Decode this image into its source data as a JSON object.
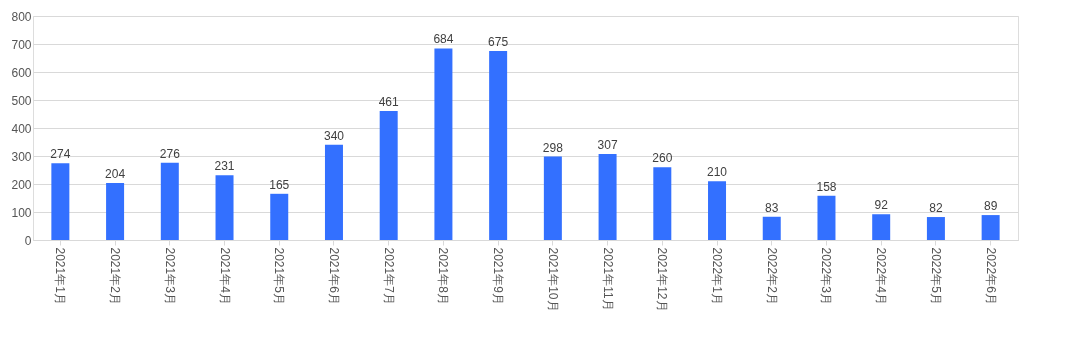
{
  "chart_data": {
    "type": "bar",
    "categories": [
      "2021年1月",
      "2021年2月",
      "2021年3月",
      "2021年4月",
      "2021年5月",
      "2021年6月",
      "2021年7月",
      "2021年8月",
      "2021年9月",
      "2021年10月",
      "2021年11月",
      "2021年12月",
      "2022年1月",
      "2022年2月",
      "2022年3月",
      "2022年4月",
      "2022年5月",
      "2022年6月"
    ],
    "values": [
      274,
      204,
      276,
      231,
      165,
      340,
      461,
      684,
      675,
      298,
      307,
      260,
      210,
      83,
      158,
      92,
      82,
      89
    ],
    "color": "#3370ff",
    "ylim": [
      0,
      800
    ],
    "yticks": [
      0,
      100,
      200,
      300,
      400,
      500,
      600,
      700,
      800
    ],
    "grid": "y",
    "data_labels": true
  }
}
